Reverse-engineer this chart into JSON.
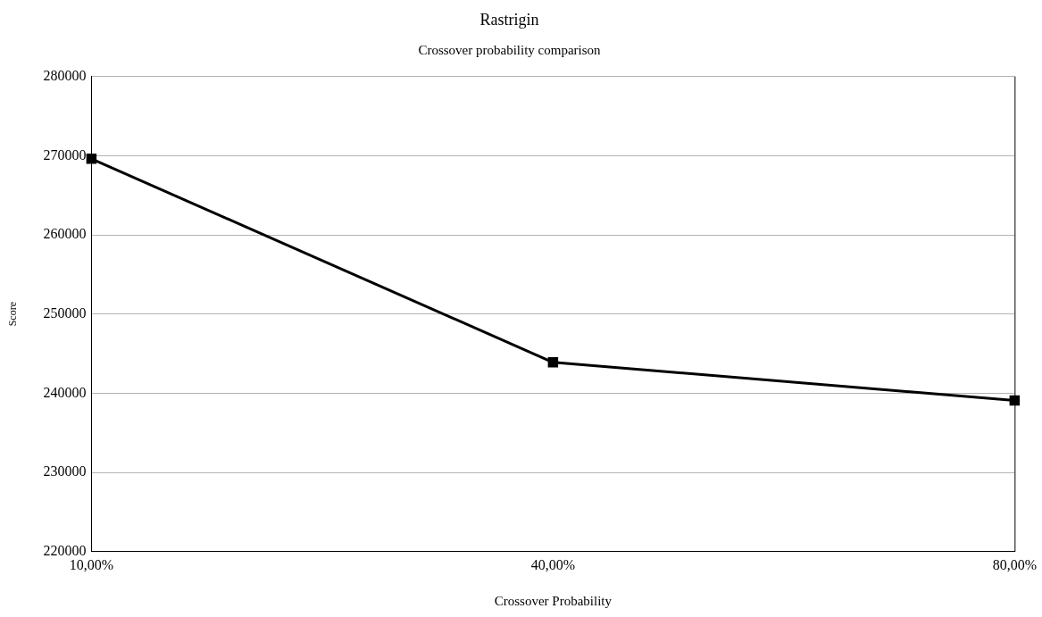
{
  "chart_data": {
    "type": "line",
    "title": "Rastrigin",
    "subtitle": "Crossover probability comparison",
    "xlabel": "Crossover Probability",
    "ylabel": "Score",
    "categories": [
      "10,00%",
      "40,00%",
      "80,00%"
    ],
    "series": [
      {
        "color": "#000000",
        "values": [
          269600,
          243900,
          239100
        ]
      }
    ],
    "ylim": [
      220000,
      280000
    ],
    "yticks": [
      220000,
      230000,
      240000,
      250000,
      260000,
      270000,
      280000
    ],
    "grid": "y",
    "legend": false,
    "marker": "square",
    "line_style": "solid"
  }
}
